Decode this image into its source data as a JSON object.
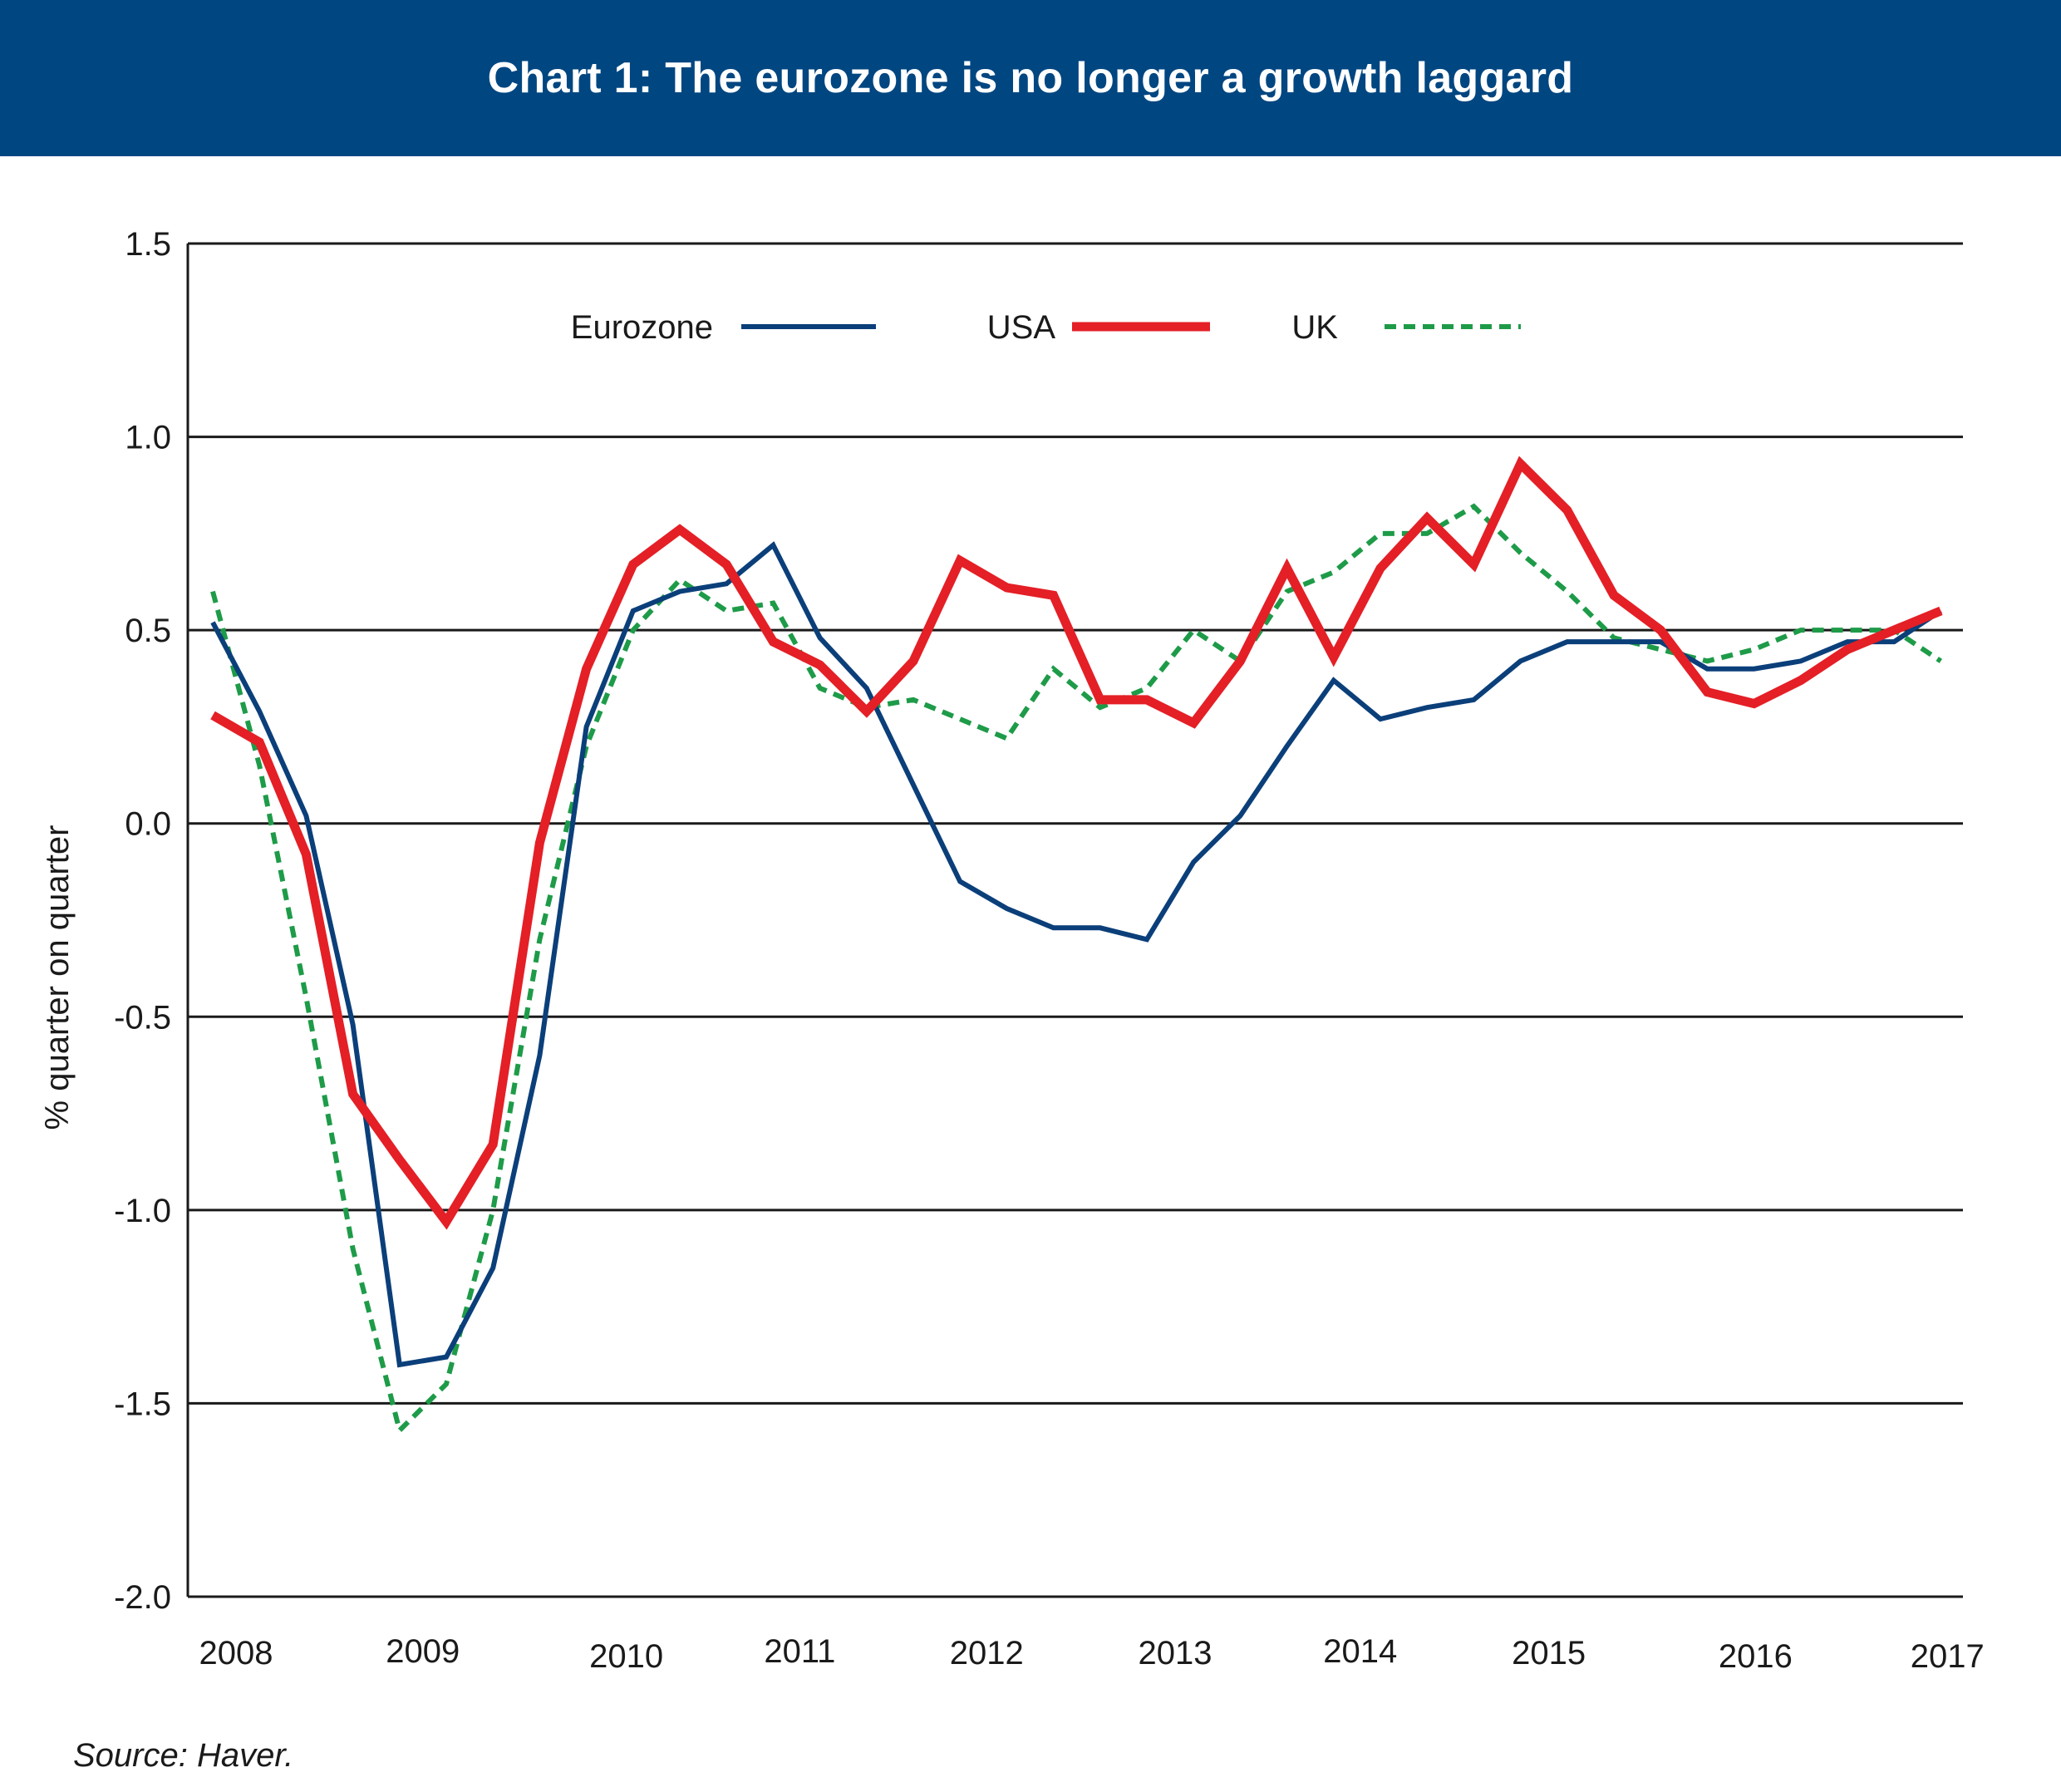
{
  "header": {
    "title": "Chart 1: The eurozone is no longer a growth laggard"
  },
  "source": "Source: Haver.",
  "chart_data": {
    "type": "line",
    "title": "Chart 1: The eurozone is no longer a growth laggard",
    "ylabel": "% quarter on quarter",
    "xlabel": "",
    "ylim": [
      -2.0,
      1.5
    ],
    "yticks": [
      "1.5",
      "1.0",
      "0.5",
      "0.0",
      "-0.5",
      "-1.0",
      "-1.5",
      "-2.0"
    ],
    "ytick_values": [
      1.5,
      1.0,
      0.5,
      0.0,
      -0.5,
      -1.0,
      -1.5,
      -2.0
    ],
    "xticks": [
      "2008",
      "2009",
      "2010",
      "2011",
      "2012",
      "2013",
      "2014",
      "2015",
      "2016",
      "2017"
    ],
    "grid": "horizontal",
    "legend_placement": "top-center",
    "x": [
      "2008Q1",
      "2008Q2",
      "2008Q3",
      "2008Q4",
      "2009Q1",
      "2009Q2",
      "2009Q3",
      "2009Q4",
      "2010Q1",
      "2010Q2",
      "2010Q3",
      "2010Q4",
      "2011Q1",
      "2011Q2",
      "2011Q3",
      "2011Q4",
      "2012Q1",
      "2012Q2",
      "2012Q3",
      "2012Q4",
      "2013Q1",
      "2013Q2",
      "2013Q3",
      "2013Q4",
      "2014Q1",
      "2014Q2",
      "2014Q3",
      "2014Q4",
      "2015Q1",
      "2015Q2",
      "2015Q3",
      "2015Q4",
      "2016Q1",
      "2016Q2",
      "2016Q3",
      "2016Q4",
      "2017Q1",
      "2017Q2",
      "2017Q3"
    ],
    "series": [
      {
        "name": "Eurozone",
        "color": "#0b3f7a",
        "style": "solid",
        "values": [
          0.52,
          0.29,
          0.02,
          -0.52,
          -1.4,
          -1.38,
          -1.15,
          -0.6,
          0.25,
          0.55,
          0.6,
          0.62,
          0.72,
          0.48,
          0.35,
          0.1,
          -0.15,
          -0.22,
          -0.27,
          -0.27,
          -0.3,
          -0.1,
          0.02,
          0.2,
          0.37,
          0.27,
          0.3,
          0.32,
          0.42,
          0.47,
          0.47,
          0.47,
          0.4,
          0.4,
          0.42,
          0.47,
          0.47,
          0.55,
          null
        ]
      },
      {
        "name": "USA",
        "color": "#e41f26",
        "style": "solid-thick",
        "values": [
          0.28,
          0.21,
          -0.08,
          -0.7,
          -0.87,
          -1.03,
          -0.83,
          -0.05,
          0.4,
          0.67,
          0.76,
          0.67,
          0.47,
          0.41,
          0.29,
          0.42,
          0.68,
          0.61,
          0.59,
          0.32,
          0.32,
          0.26,
          0.42,
          0.66,
          0.43,
          0.66,
          0.79,
          0.67,
          0.93,
          0.81,
          0.59,
          0.5,
          0.34,
          0.31,
          0.37,
          0.45,
          0.5,
          0.55,
          null
        ]
      },
      {
        "name": "UK",
        "color": "#1e9b48",
        "style": "dotted",
        "values": [
          0.6,
          0.15,
          -0.45,
          -1.1,
          -1.57,
          -1.45,
          -1.0,
          -0.3,
          0.2,
          0.5,
          0.63,
          0.55,
          0.57,
          0.35,
          0.3,
          0.32,
          0.27,
          0.22,
          0.4,
          0.3,
          0.35,
          0.5,
          0.42,
          0.6,
          0.65,
          0.75,
          0.75,
          0.82,
          0.7,
          0.6,
          0.48,
          0.45,
          0.42,
          0.45,
          0.5,
          0.5,
          0.5,
          0.42,
          null
        ]
      }
    ]
  }
}
